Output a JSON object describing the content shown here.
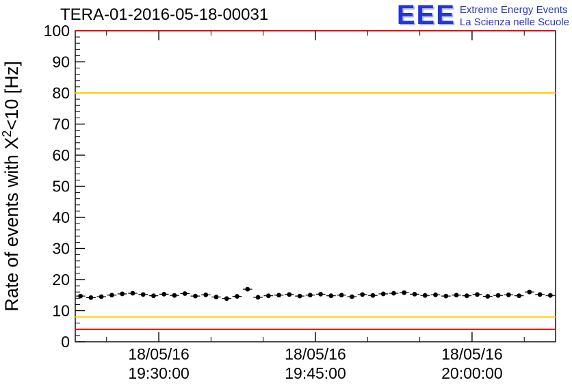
{
  "header": {
    "title": "TERA-01-2016-05-18-00031",
    "logo": {
      "acronym": "EEE",
      "line1": "Extreme Energy Events",
      "line2": "La Scienza nelle Scuole",
      "color": "#2636d2"
    }
  },
  "chart_data": {
    "type": "scatter",
    "title": "TERA-01-2016-05-18-00031",
    "ylabel": "Rate of events with X^2<10 [Hz]",
    "ylabel_parts": {
      "prefix": "Rate of events with X",
      "sup": "2",
      "suffix": "<10 [Hz]"
    },
    "xlabel": "",
    "ylim": [
      0,
      100
    ],
    "xlim": [
      0,
      46
    ],
    "grid": false,
    "y_major_ticks": [
      0,
      10,
      20,
      30,
      40,
      50,
      60,
      70,
      80,
      90,
      100
    ],
    "y_minor_step": 2,
    "x_ticks": [
      {
        "pos": 8,
        "date": "18/05/16",
        "time": "19:30:00"
      },
      {
        "pos": 23,
        "date": "18/05/16",
        "time": "19:45:00"
      },
      {
        "pos": 38,
        "date": "18/05/16",
        "time": "20:00:00"
      }
    ],
    "x_minor_ticks": [
      3,
      13,
      18,
      28,
      33,
      43
    ],
    "reference_lines": [
      {
        "y": 100,
        "color": "#e60000",
        "meaning": "upper-alarm"
      },
      {
        "y": 80,
        "color": "#ffcc00",
        "meaning": "upper-warning"
      },
      {
        "y": 8,
        "color": "#ffcc00",
        "meaning": "lower-warning"
      },
      {
        "y": 4,
        "color": "#e60000",
        "meaning": "lower-alarm"
      }
    ],
    "series": [
      {
        "name": "rate",
        "marker": "filled-circle",
        "color": "#000000",
        "x_error": 0.45,
        "y_error": 0.5,
        "x": [
          0.5,
          1.5,
          2.5,
          3.5,
          4.5,
          5.5,
          6.5,
          7.5,
          8.5,
          9.5,
          10.5,
          11.5,
          12.5,
          13.5,
          14.5,
          15.5,
          16.5,
          17.5,
          18.5,
          19.5,
          20.5,
          21.5,
          22.5,
          23.5,
          24.5,
          25.5,
          26.5,
          27.5,
          28.5,
          29.5,
          30.5,
          31.5,
          32.5,
          33.5,
          34.5,
          35.5,
          36.5,
          37.5,
          38.5,
          39.5,
          40.5,
          41.5,
          42.5,
          43.5,
          44.5,
          45.5
        ],
        "y": [
          14.7,
          14.2,
          14.5,
          15.0,
          15.4,
          15.6,
          15.2,
          14.8,
          15.3,
          14.9,
          15.5,
          14.7,
          15.1,
          14.4,
          13.9,
          14.6,
          16.9,
          14.3,
          14.8,
          15.0,
          15.2,
          14.7,
          15.0,
          15.3,
          14.8,
          15.0,
          14.5,
          15.2,
          14.9,
          15.4,
          15.6,
          15.8,
          15.3,
          14.9,
          15.1,
          14.7,
          15.0,
          14.8,
          15.2,
          14.6,
          14.9,
          15.1,
          14.8,
          16.0,
          15.2,
          14.9
        ]
      }
    ]
  }
}
